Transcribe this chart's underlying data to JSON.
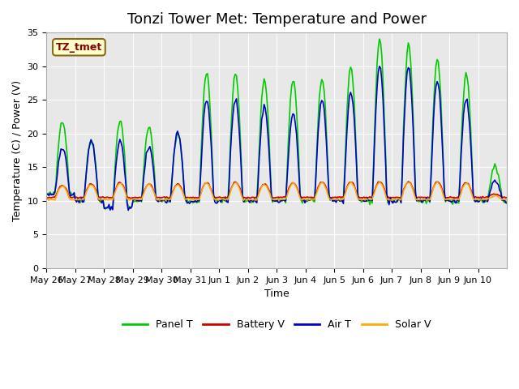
{
  "title": "Tonzi Tower Met: Temperature and Power",
  "xlabel": "Time",
  "ylabel": "Temperature (C) / Power (V)",
  "ylim": [
    0,
    35
  ],
  "n_days": 16,
  "label_box": "TZ_tmet",
  "legend_labels": [
    "Panel T",
    "Battery V",
    "Air T",
    "Solar V"
  ],
  "legend_colors": [
    "#00cc00",
    "#cc0000",
    "#0000cc",
    "#ffaa00"
  ],
  "title_fontsize": 13,
  "axis_fontsize": 9,
  "tick_fontsize": 8,
  "x_tick_labels": [
    "May 26",
    "May 27",
    "May 28",
    "May 29",
    "May 30",
    "May 31",
    "Jun 1",
    "Jun 2",
    "Jun 3",
    "Jun 4",
    "Jun 5",
    "Jun 6",
    "Jun 7",
    "Jun 8",
    "Jun 9",
    "Jun 10"
  ],
  "yticks": [
    0,
    5,
    10,
    15,
    20,
    25,
    30,
    35
  ]
}
